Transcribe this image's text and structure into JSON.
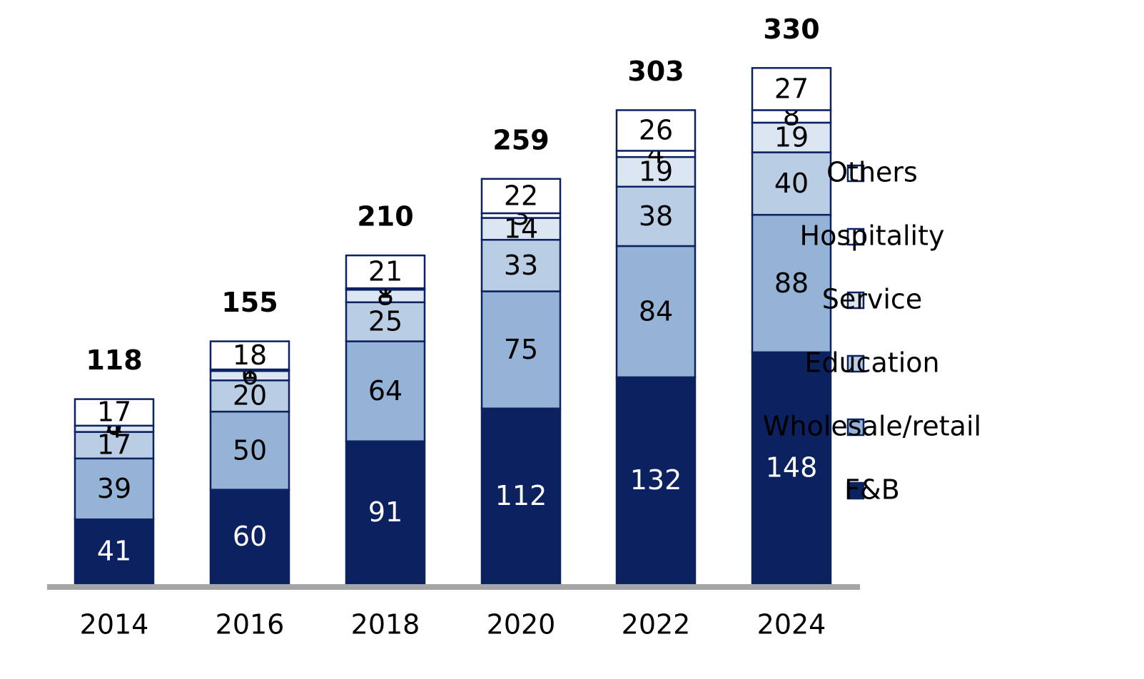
{
  "chart_data": {
    "type": "stacked_bar",
    "categories": [
      "2014",
      "2016",
      "2018",
      "2020",
      "2022",
      "2024"
    ],
    "totals": [
      118,
      155,
      210,
      259,
      303,
      330
    ],
    "series": [
      {
        "name": "F&B",
        "color": "#0c2260",
        "values": [
          41,
          60,
          91,
          112,
          132,
          148
        ]
      },
      {
        "name": "Wholesale/retail",
        "color": "#95b3d7",
        "values": [
          39,
          50,
          64,
          75,
          84,
          88
        ]
      },
      {
        "name": "Education",
        "color": "#b9cde5",
        "values": [
          17,
          20,
          25,
          33,
          38,
          40
        ]
      },
      {
        "name": "Service",
        "color": "#dce6f2",
        "values": [
          4,
          6,
          8,
          14,
          19,
          19
        ]
      },
      {
        "name": "Hospitality",
        "color": "#ffffff",
        "values": [
          0,
          1,
          1,
          3,
          4,
          8
        ]
      },
      {
        "name": "Others",
        "color": "#ffffff",
        "values": [
          17,
          18,
          21,
          22,
          26,
          27
        ]
      }
    ]
  }
}
